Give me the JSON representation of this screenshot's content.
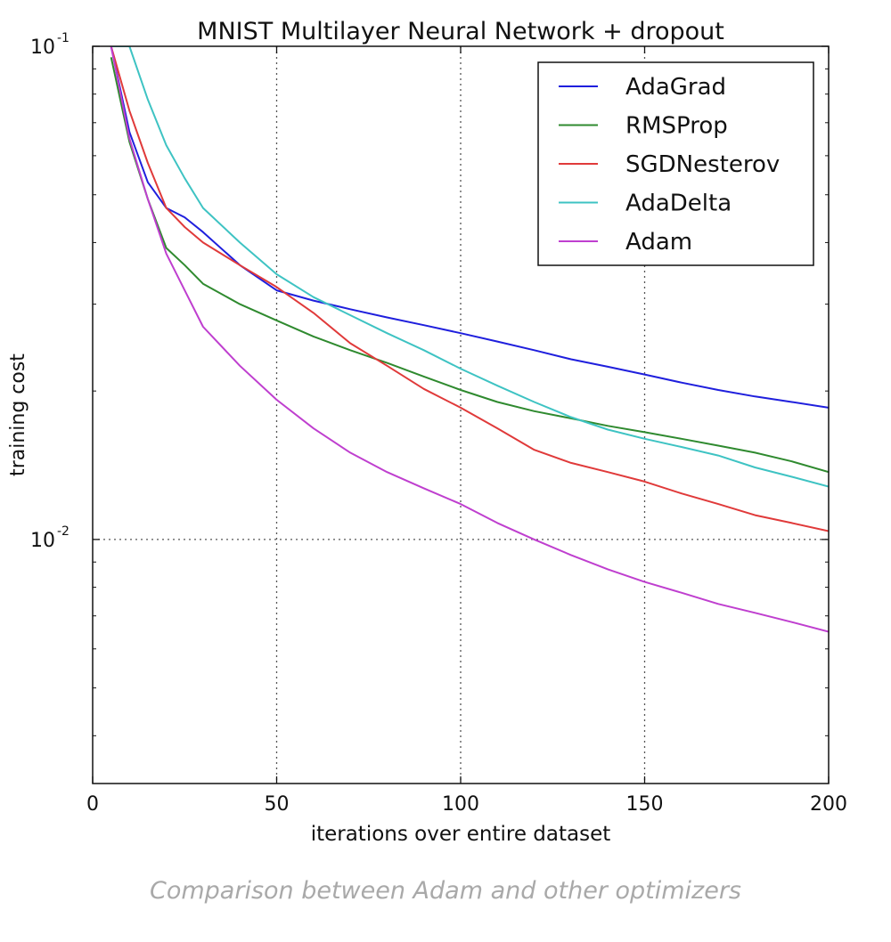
{
  "caption": "Comparison between Adam and other optimizers",
  "chart_data": {
    "type": "line",
    "title": "MNIST Multilayer Neural Network + dropout",
    "xlabel": "iterations over entire dataset",
    "ylabel": "training cost",
    "xlim": [
      0,
      200
    ],
    "ylim": [
      0.0032,
      0.1
    ],
    "yscale": "log",
    "x_ticks": [
      0,
      50,
      100,
      150,
      200
    ],
    "x_tick_labels": [
      "0",
      "50",
      "100",
      "150",
      "200"
    ],
    "y_ticks": [
      {
        "value": 0.1,
        "base": "10",
        "exp": "-1"
      },
      {
        "value": 0.01,
        "base": "10",
        "exp": "-2"
      }
    ],
    "grid": true,
    "legend_position": "top-right",
    "x": [
      5,
      10,
      15,
      20,
      25,
      30,
      40,
      50,
      60,
      70,
      80,
      90,
      100,
      110,
      120,
      130,
      140,
      150,
      160,
      170,
      180,
      190,
      200
    ],
    "series": [
      {
        "name": "AdaGrad",
        "color": "#1f1fdd",
        "values": [
          0.1,
          0.067,
          0.053,
          0.047,
          0.045,
          0.042,
          0.036,
          0.032,
          0.0305,
          0.0293,
          0.0282,
          0.0272,
          0.0262,
          0.0252,
          0.0242,
          0.0232,
          0.0224,
          0.0216,
          0.0208,
          0.0201,
          0.0195,
          0.019,
          0.0185
        ]
      },
      {
        "name": "RMSProp",
        "color": "#2f8a2f",
        "values": [
          0.095,
          0.064,
          0.049,
          0.039,
          0.036,
          0.033,
          0.03,
          0.0278,
          0.0258,
          0.0242,
          0.0228,
          0.0214,
          0.0201,
          0.019,
          0.0182,
          0.0176,
          0.017,
          0.0165,
          0.016,
          0.0155,
          0.015,
          0.0144,
          0.0137
        ]
      },
      {
        "name": "SGDNesterov",
        "color": "#e03a3a",
        "values": [
          0.1,
          0.074,
          0.058,
          0.047,
          0.043,
          0.04,
          0.036,
          0.0325,
          0.0288,
          0.025,
          0.0225,
          0.0202,
          0.0185,
          0.0168,
          0.0152,
          0.0143,
          0.0137,
          0.0131,
          0.0124,
          0.0118,
          0.0112,
          0.0108,
          0.0104
        ]
      },
      {
        "name": "AdaDelta",
        "color": "#3ec3c3",
        "values": [
          0.1,
          0.1,
          0.078,
          0.063,
          0.054,
          0.047,
          0.04,
          0.0345,
          0.031,
          0.0285,
          0.0262,
          0.0242,
          0.0222,
          0.0205,
          0.019,
          0.0177,
          0.0167,
          0.016,
          0.0154,
          0.0148,
          0.014,
          0.0134,
          0.0128
        ]
      },
      {
        "name": "Adam",
        "color": "#bf3fcf",
        "values": [
          0.1,
          0.065,
          0.049,
          0.038,
          0.032,
          0.027,
          0.0225,
          0.0192,
          0.0168,
          0.015,
          0.0137,
          0.0127,
          0.0118,
          0.0108,
          0.01,
          0.0093,
          0.0087,
          0.0082,
          0.0078,
          0.0074,
          0.0071,
          0.0068,
          0.0065
        ]
      }
    ]
  }
}
